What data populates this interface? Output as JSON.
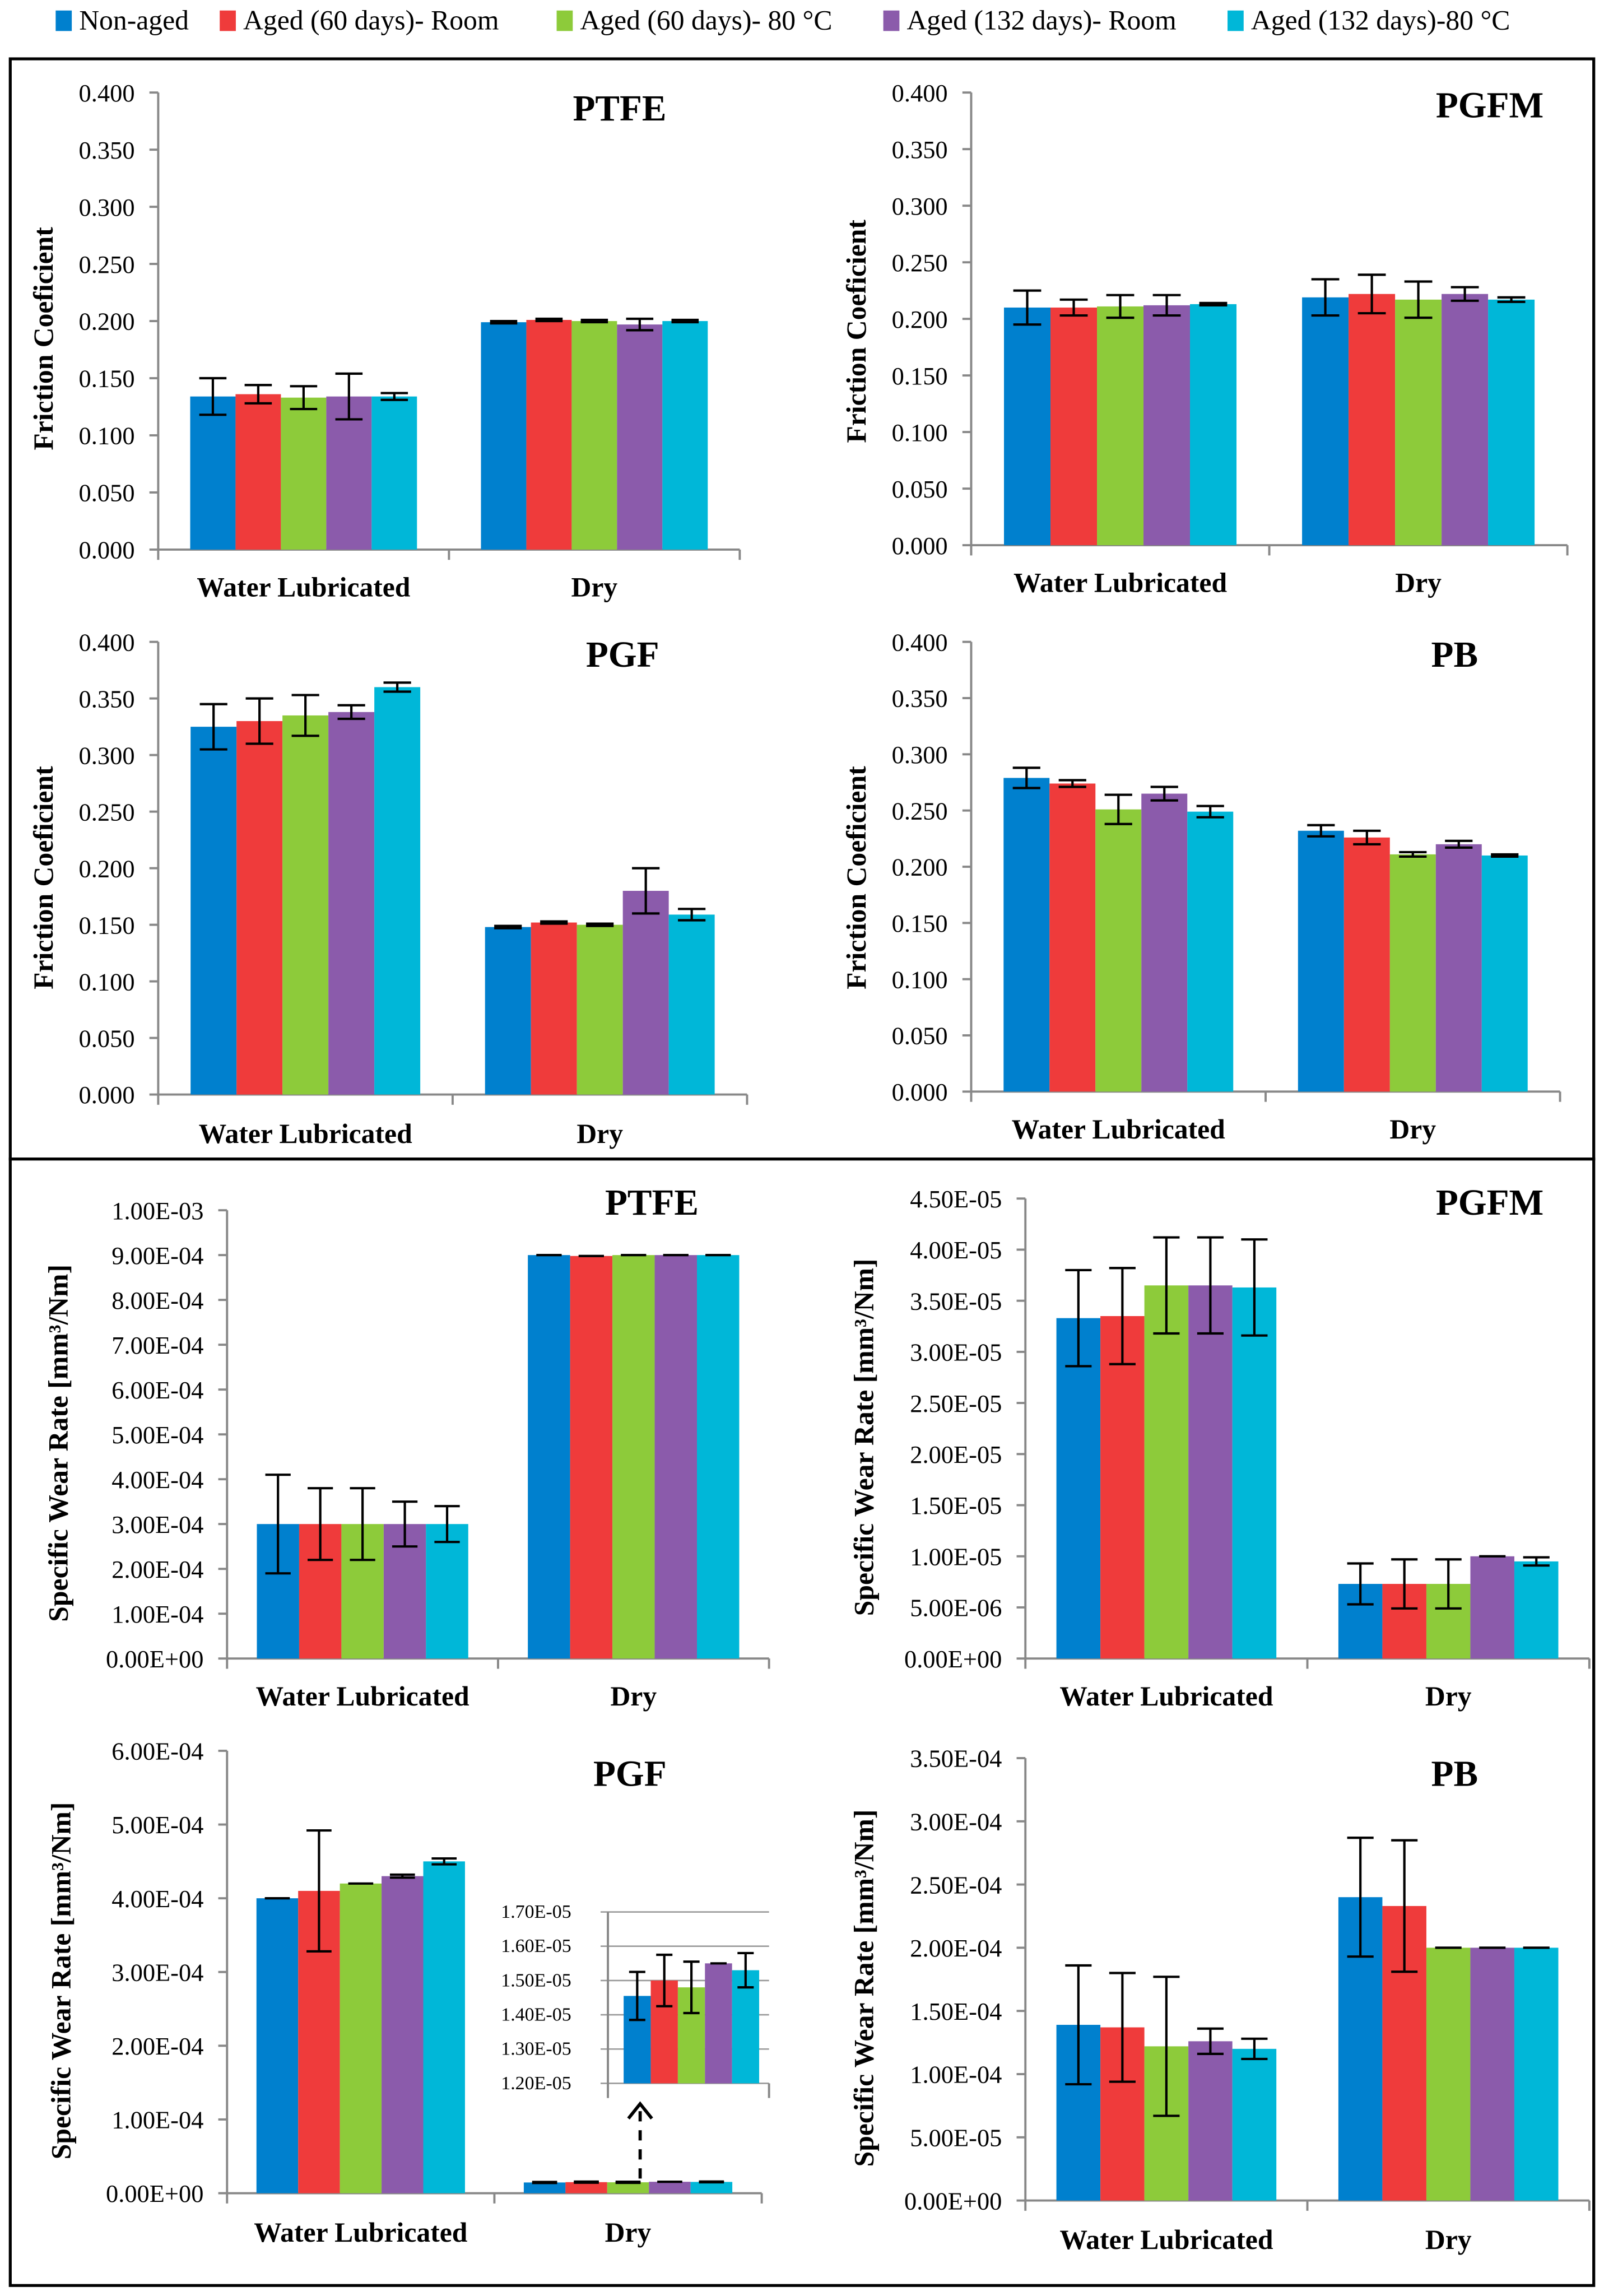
{
  "legend": [
    {
      "label": "Non-aged",
      "color": "#0080CE"
    },
    {
      "label": "Aged (60 days)- Room",
      "color": "#EF3B3B"
    },
    {
      "label": "Aged (60 days)- 80 °C",
      "color": "#8DCB3A"
    },
    {
      "label": "Aged (132 days)- Room",
      "color": "#8B5BAB"
    },
    {
      "label": "Aged (132 days)-80 °C",
      "color": "#00B7D8"
    }
  ],
  "chart_data": [
    {
      "type": "bar",
      "title": "PTFE",
      "ylabel": "Friction Coeficient",
      "categories": [
        "Water Lubricated",
        "Dry"
      ],
      "ylim": [
        0,
        0.4
      ],
      "yticks": [
        "0.000",
        "0.050",
        "0.100",
        "0.150",
        "0.200",
        "0.250",
        "0.300",
        "0.350",
        "0.400"
      ],
      "series": [
        [
          0.134,
          0.199
        ],
        [
          0.136,
          0.201
        ],
        [
          0.133,
          0.2
        ],
        [
          0.134,
          0.197
        ],
        [
          0.134,
          0.2
        ]
      ],
      "errors": [
        [
          0.016,
          0.001
        ],
        [
          0.008,
          0.001
        ],
        [
          0.01,
          0.001
        ],
        [
          0.02,
          0.005
        ],
        [
          0.003,
          0.001
        ]
      ]
    },
    {
      "type": "bar",
      "title": "PGFM",
      "ylabel": "Friction Coeficient",
      "categories": [
        "Water Lubricated",
        "Dry"
      ],
      "ylim": [
        0,
        0.4
      ],
      "yticks": [
        "0.000",
        "0.050",
        "0.100",
        "0.150",
        "0.200",
        "0.250",
        "0.300",
        "0.350",
        "0.400"
      ],
      "series": [
        [
          0.21,
          0.219
        ],
        [
          0.21,
          0.222
        ],
        [
          0.211,
          0.217
        ],
        [
          0.212,
          0.222
        ],
        [
          0.213,
          0.217
        ]
      ],
      "errors": [
        [
          0.015,
          0.016
        ],
        [
          0.007,
          0.017
        ],
        [
          0.01,
          0.016
        ],
        [
          0.009,
          0.006
        ],
        [
          0.001,
          0.002
        ]
      ]
    },
    {
      "type": "bar",
      "title": "PGF",
      "ylabel": "Friction Coeficient",
      "categories": [
        "Water Lubricated",
        "Dry"
      ],
      "ylim": [
        0,
        0.4
      ],
      "yticks": [
        "0.000",
        "0.050",
        "0.100",
        "0.150",
        "0.200",
        "0.250",
        "0.300",
        "0.350",
        "0.400"
      ],
      "series": [
        [
          0.325,
          0.148
        ],
        [
          0.33,
          0.152
        ],
        [
          0.335,
          0.15
        ],
        [
          0.338,
          0.18
        ],
        [
          0.36,
          0.159
        ]
      ],
      "errors": [
        [
          0.02,
          0.001
        ],
        [
          0.02,
          0.001
        ],
        [
          0.018,
          0.001
        ],
        [
          0.006,
          0.02
        ],
        [
          0.004,
          0.005
        ]
      ]
    },
    {
      "type": "bar",
      "title": "PB",
      "ylabel": "Friction Coeficient",
      "categories": [
        "Water Lubricated",
        "Dry"
      ],
      "ylim": [
        0,
        0.4
      ],
      "yticks": [
        "0.000",
        "0.050",
        "0.100",
        "0.150",
        "0.200",
        "0.250",
        "0.300",
        "0.350",
        "0.400"
      ],
      "series": [
        [
          0.279,
          0.232
        ],
        [
          0.274,
          0.226
        ],
        [
          0.251,
          0.211
        ],
        [
          0.265,
          0.22
        ],
        [
          0.249,
          0.21
        ]
      ],
      "errors": [
        [
          0.009,
          0.005
        ],
        [
          0.003,
          0.006
        ],
        [
          0.013,
          0.002
        ],
        [
          0.006,
          0.003
        ],
        [
          0.005,
          0.001
        ]
      ]
    },
    {
      "type": "bar",
      "title": "PTFE",
      "ylabel": "Specific Wear Rate [mm³/Nm]",
      "categories": [
        "Water Lubricated",
        "Dry"
      ],
      "ylim": [
        0,
        0.001
      ],
      "yticks": [
        "0.00E+00",
        "1.00E-04",
        "2.00E-04",
        "3.00E-04",
        "4.00E-04",
        "5.00E-04",
        "6.00E-04",
        "7.00E-04",
        "8.00E-04",
        "9.00E-04",
        "1.00E-03"
      ],
      "series": [
        [
          0.0003,
          0.0009
        ],
        [
          0.0003,
          0.000898
        ],
        [
          0.0003,
          0.0009
        ],
        [
          0.0003,
          0.0009
        ],
        [
          0.0003,
          0.0009
        ]
      ],
      "errors": [
        [
          0.00011,
          0
        ],
        [
          8e-05,
          0
        ],
        [
          8e-05,
          0
        ],
        [
          5e-05,
          0
        ],
        [
          4e-05,
          0
        ]
      ]
    },
    {
      "type": "bar",
      "title": "PGFM",
      "ylabel": "Specific Wear Rate [mm³/Nm]",
      "categories": [
        "Water Lubricated",
        "Dry"
      ],
      "ylim": [
        0,
        4.5e-05
      ],
      "yticks": [
        "0.00E+00",
        "5.00E-06",
        "1.00E-05",
        "1.50E-05",
        "2.00E-05",
        "2.50E-05",
        "3.00E-05",
        "3.50E-05",
        "4.00E-05",
        "4.50E-05"
      ],
      "series": [
        [
          3.33e-05,
          7.3e-06
        ],
        [
          3.35e-05,
          7.3e-06
        ],
        [
          3.65e-05,
          7.3e-06
        ],
        [
          3.65e-05,
          1e-05
        ],
        [
          3.63e-05,
          9.5e-06
        ]
      ],
      "errors": [
        [
          4.7e-06,
          2e-06
        ],
        [
          4.7e-06,
          2.4e-06
        ],
        [
          4.7e-06,
          2.4e-06
        ],
        [
          4.7e-06,
          0
        ],
        [
          4.7e-06,
          4e-07
        ]
      ]
    },
    {
      "type": "bar",
      "title": "PGF",
      "ylabel": "Specific Wear Rate [mm³/Nm]",
      "categories": [
        "Water Lubricated",
        "Dry"
      ],
      "ylim": [
        0,
        0.0006
      ],
      "yticks": [
        "0.00E+00",
        "1.00E-04",
        "2.00E-04",
        "3.00E-04",
        "4.00E-04",
        "5.00E-04",
        "6.00E-04"
      ],
      "series": [
        [
          0.0004,
          1.455e-05
        ],
        [
          0.00041,
          1.5e-05
        ],
        [
          0.00042,
          1.48e-05
        ],
        [
          0.00043,
          1.55e-05
        ],
        [
          0.00045,
          1.53e-05
        ]
      ],
      "errors": [
        [
          0,
          7e-07
        ],
        [
          8.2e-05,
          7.5e-07
        ],
        [
          0,
          7.5e-07
        ],
        [
          2e-06,
          0
        ],
        [
          4e-06,
          5e-07
        ]
      ],
      "inset": {
        "ylim": [
          1.2e-05,
          1.7e-05
        ],
        "yticks": [
          "1.20E-05",
          "1.30E-05",
          "1.40E-05",
          "1.50E-05",
          "1.60E-05",
          "1.70E-05"
        ]
      }
    },
    {
      "type": "bar",
      "title": "PB",
      "ylabel": "Specific Wear Rate [mm³/Nm]",
      "categories": [
        "Water Lubricated",
        "Dry"
      ],
      "ylim": [
        0,
        0.00035
      ],
      "yticks": [
        "0.00E+00",
        "5.00E-05",
        "1.00E-04",
        "1.50E-04",
        "2.00E-04",
        "2.50E-04",
        "3.00E-04",
        "3.50E-04"
      ],
      "series": [
        [
          0.000139,
          0.00024
        ],
        [
          0.000137,
          0.000233
        ],
        [
          0.000122,
          0.0002
        ],
        [
          0.000126,
          0.0002
        ],
        [
          0.00012,
          0.0002
        ]
      ],
      "errors": [
        [
          4.7e-05,
          4.7e-05
        ],
        [
          4.3e-05,
          5.2e-05
        ],
        [
          5.5e-05,
          0
        ],
        [
          1e-05,
          0
        ],
        [
          8e-06,
          0
        ]
      ]
    }
  ]
}
